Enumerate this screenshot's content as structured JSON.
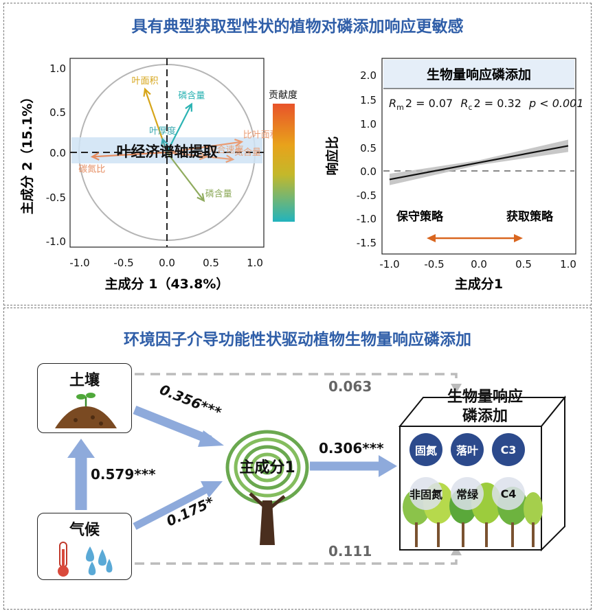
{
  "top_panel": {
    "title": "具有典型获取型性状的植物对磷添加响应更敏感",
    "pca": {
      "xlabel": "主成分 1（43.8%）",
      "ylabel": "主成分 2（15.1%）",
      "xticks": [
        "-1.0",
        "-0.5",
        "0.0",
        "0.5",
        "1.0"
      ],
      "yticks": [
        "1.0",
        "0.5",
        "0.0",
        "-0.5",
        "-1.0"
      ],
      "banner": "叶经济谱轴提取",
      "legend_title": "贡献度",
      "vectors": [
        {
          "label": "叶面积",
          "x": -0.25,
          "y": 0.72,
          "color": "#d6a51a"
        },
        {
          "label": "磷含量",
          "x": 0.28,
          "y": 0.55,
          "color": "#2bb3b3"
        },
        {
          "label": "叶厚度",
          "x": -0.05,
          "y": 0.15,
          "color": "#3aa9b0"
        },
        {
          "label": "比叶面积",
          "x": 0.85,
          "y": 0.12,
          "color": "#ea9b72"
        },
        {
          "label": "光合速率",
          "x": 0.45,
          "y": -0.05,
          "color": "#e6a57e"
        },
        {
          "label": "氮含量",
          "x": 0.75,
          "y": -0.08,
          "color": "#e8a07a"
        },
        {
          "label": "碳氮比",
          "x": -0.85,
          "y": -0.05,
          "color": "#e58c60"
        },
        {
          "label": "磷含量",
          "x": 0.42,
          "y": -0.55,
          "color": "#8fab5e"
        }
      ]
    },
    "regression": {
      "header": "生物量响应磷添加",
      "stats_r_m": "R",
      "stats_m_sub": "m",
      "stats_m_val": "2 = 0.07",
      "stats_r_c": "R",
      "stats_c_sub": "c",
      "stats_c_val": "2 = 0.32",
      "stats_p": "p < 0.001",
      "ylabel": "响应比",
      "xlabel": "主成分1",
      "xticks": [
        "-1.0",
        "-0.5",
        "0.0",
        "0.5",
        "1.0"
      ],
      "yticks": [
        "2.0",
        "1.5",
        "1.0",
        "0.5",
        "0.0",
        "-0.5",
        "-1.0",
        "-1.5"
      ],
      "left_strategy": "保守策略",
      "right_strategy": "获取策略",
      "line": {
        "x0": -1.0,
        "y0": -0.18,
        "x1": 1.0,
        "y1": 0.53
      },
      "accent": "#d9661f"
    }
  },
  "bottom_panel": {
    "title": "环境因子介导功能性状驱动植物生物量响应磷添加",
    "soil_label": "土壤",
    "climate_label": "气候",
    "center_label": "主成分1",
    "target_label_line1": "生物量响应",
    "target_label_line2": "磷添加",
    "coef_soil_pc1": "0.356***",
    "coef_climate_pc1": "0.175*",
    "coef_climate_soil": "0.579***",
    "coef_pc1_target": "0.306***",
    "coef_soil_target": "0.063",
    "coef_climate_target": "0.111",
    "badges": [
      "固氮",
      "落叶",
      "C3",
      "非固氮",
      "常绿",
      "C4"
    ],
    "arrow_color": "#8eaadb",
    "dashed_color": "#bbbbbb"
  }
}
